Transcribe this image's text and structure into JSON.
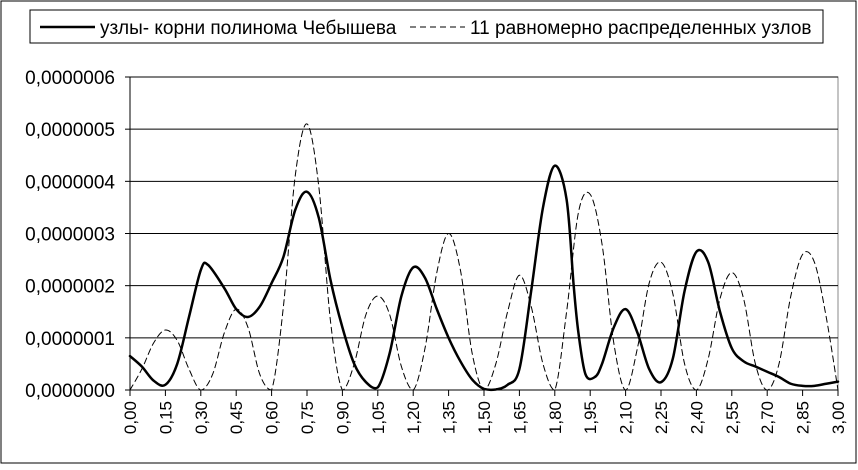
{
  "chart_data": {
    "type": "line",
    "title": "",
    "xlabel": "",
    "ylabel": "",
    "legend_position": "top",
    "grid": true,
    "ylim": [
      0,
      6e-07
    ],
    "xlim": [
      0,
      3.0
    ],
    "y_ticks": [
      "0,0000000",
      "0,0000001",
      "0,0000002",
      "0,0000003",
      "0,0000004",
      "0,0000005",
      "0,0000006"
    ],
    "x_ticks": [
      "0,00",
      "0,15",
      "0,30",
      "0,45",
      "0,60",
      "0,75",
      "0,90",
      "1,05",
      "1,20",
      "1,35",
      "1,50",
      "1,65",
      "1,80",
      "1,95",
      "2,10",
      "2,25",
      "2,40",
      "2,55",
      "2,70",
      "2,85",
      "3,00"
    ],
    "series": [
      {
        "name": "узлы- корни полинома Чебышева",
        "style": "solid",
        "color": "#000000",
        "points": [
          [
            0.0,
            6.5e-08
          ],
          [
            0.05,
            4.5e-08
          ],
          [
            0.1,
            1.8e-08
          ],
          [
            0.15,
            1e-08
          ],
          [
            0.2,
            5e-08
          ],
          [
            0.25,
            1.4e-07
          ],
          [
            0.3,
            2.3e-07
          ],
          [
            0.33,
            2.4e-07
          ],
          [
            0.4,
            1.95e-07
          ],
          [
            0.45,
            1.55e-07
          ],
          [
            0.5,
            1.4e-07
          ],
          [
            0.55,
            1.6e-07
          ],
          [
            0.6,
            2.05e-07
          ],
          [
            0.65,
            2.55e-07
          ],
          [
            0.7,
            3.45e-07
          ],
          [
            0.75,
            3.8e-07
          ],
          [
            0.8,
            3.3e-07
          ],
          [
            0.85,
            2.1e-07
          ],
          [
            0.9,
            1.2e-07
          ],
          [
            0.95,
            5e-08
          ],
          [
            1.0,
            1.5e-08
          ],
          [
            1.05,
            5e-09
          ],
          [
            1.1,
            7e-08
          ],
          [
            1.15,
            1.8e-07
          ],
          [
            1.2,
            2.35e-07
          ],
          [
            1.25,
            2.15e-07
          ],
          [
            1.3,
            1.55e-07
          ],
          [
            1.35,
            1e-07
          ],
          [
            1.4,
            5.5e-08
          ],
          [
            1.45,
            2e-08
          ],
          [
            1.5,
            2e-09
          ],
          [
            1.55,
            1e-09
          ],
          [
            1.6,
            1e-08
          ],
          [
            1.65,
            4e-08
          ],
          [
            1.7,
            1.9e-07
          ],
          [
            1.75,
            3.5e-07
          ],
          [
            1.8,
            4.3e-07
          ],
          [
            1.85,
            3.65e-07
          ],
          [
            1.88,
            2e-07
          ],
          [
            1.9,
            1.1e-07
          ],
          [
            1.93,
            3e-08
          ],
          [
            1.97,
            2.5e-08
          ],
          [
            2.0,
            5e-08
          ],
          [
            2.05,
            1.2e-07
          ],
          [
            2.1,
            1.55e-07
          ],
          [
            2.15,
            1.1e-07
          ],
          [
            2.2,
            4e-08
          ],
          [
            2.25,
            1.5e-08
          ],
          [
            2.3,
            6e-08
          ],
          [
            2.35,
            1.9e-07
          ],
          [
            2.4,
            2.65e-07
          ],
          [
            2.45,
            2.45e-07
          ],
          [
            2.5,
            1.5e-07
          ],
          [
            2.55,
            8e-08
          ],
          [
            2.6,
            5.5e-08
          ],
          [
            2.65,
            4.5e-08
          ],
          [
            2.7,
            3.5e-08
          ],
          [
            2.75,
            2.5e-08
          ],
          [
            2.8,
            1.2e-08
          ],
          [
            2.85,
            8e-09
          ],
          [
            2.9,
            8e-09
          ],
          [
            2.95,
            1.2e-08
          ],
          [
            3.0,
            1.6e-08
          ]
        ]
      },
      {
        "name": "11 равномерно распределенных узлов",
        "style": "dashed",
        "color": "#000000",
        "points": [
          [
            0.0,
            0
          ],
          [
            0.05,
            4e-08
          ],
          [
            0.1,
            9e-08
          ],
          [
            0.15,
            1.15e-07
          ],
          [
            0.2,
            9.5e-08
          ],
          [
            0.25,
            4e-08
          ],
          [
            0.3,
            0
          ],
          [
            0.35,
            3e-08
          ],
          [
            0.4,
            1.1e-07
          ],
          [
            0.45,
            1.55e-07
          ],
          [
            0.5,
            1.2e-07
          ],
          [
            0.55,
            3e-08
          ],
          [
            0.6,
            0
          ],
          [
            0.65,
            1.6e-07
          ],
          [
            0.7,
            4.1e-07
          ],
          [
            0.75,
            5.1e-07
          ],
          [
            0.8,
            3.9e-07
          ],
          [
            0.85,
            1.3e-07
          ],
          [
            0.9,
            0
          ],
          [
            0.95,
            5e-08
          ],
          [
            1.0,
            1.45e-07
          ],
          [
            1.05,
            1.8e-07
          ],
          [
            1.1,
            1.45e-07
          ],
          [
            1.15,
            4.5e-08
          ],
          [
            1.2,
            0
          ],
          [
            1.25,
            8e-08
          ],
          [
            1.3,
            2.25e-07
          ],
          [
            1.35,
            3e-07
          ],
          [
            1.4,
            2.3e-07
          ],
          [
            1.45,
            7e-08
          ],
          [
            1.5,
            0
          ],
          [
            1.55,
            5e-08
          ],
          [
            1.6,
            1.5e-07
          ],
          [
            1.65,
            2.2e-07
          ],
          [
            1.7,
            1.6e-07
          ],
          [
            1.75,
            5e-08
          ],
          [
            1.8,
            0
          ],
          [
            1.85,
            1.5e-07
          ],
          [
            1.9,
            3.4e-07
          ],
          [
            1.95,
            3.75e-07
          ],
          [
            2.0,
            2.8e-07
          ],
          [
            2.05,
            9e-08
          ],
          [
            2.1,
            0
          ],
          [
            2.15,
            8e-08
          ],
          [
            2.2,
            2.05e-07
          ],
          [
            2.25,
            2.45e-07
          ],
          [
            2.3,
            1.85e-07
          ],
          [
            2.35,
            5e-08
          ],
          [
            2.4,
            0
          ],
          [
            2.45,
            6e-08
          ],
          [
            2.5,
            1.75e-07
          ],
          [
            2.55,
            2.25e-07
          ],
          [
            2.6,
            1.75e-07
          ],
          [
            2.65,
            5e-08
          ],
          [
            2.7,
            0
          ],
          [
            2.75,
            5e-08
          ],
          [
            2.8,
            1.8e-07
          ],
          [
            2.85,
            2.6e-07
          ],
          [
            2.9,
            2.45e-07
          ],
          [
            2.95,
            1.4e-07
          ],
          [
            3.0,
            0
          ]
        ]
      }
    ]
  }
}
